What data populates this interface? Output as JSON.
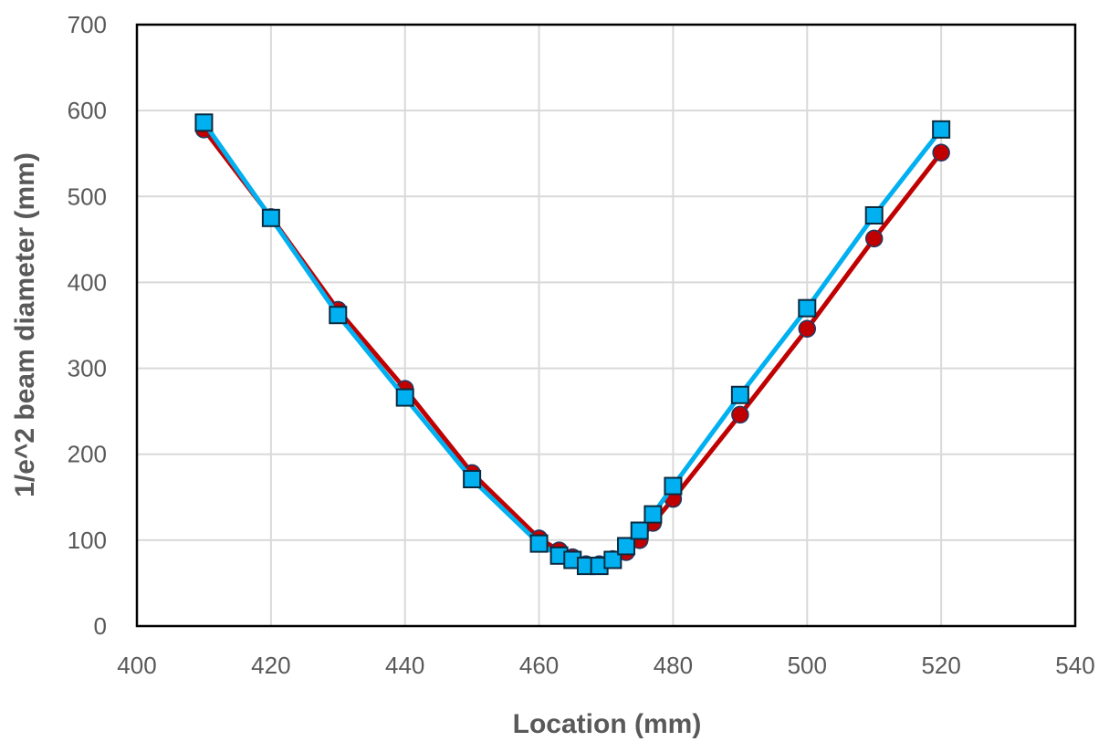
{
  "chart_data": {
    "type": "scatter",
    "xlabel": "Location (mm)",
    "ylabel": "1/e^2 beam diameter (mm)",
    "xlim": [
      400,
      540
    ],
    "ylim": [
      0,
      700
    ],
    "x_ticks": [
      400,
      420,
      440,
      460,
      480,
      500,
      520,
      540
    ],
    "y_ticks": [
      0,
      100,
      200,
      300,
      400,
      500,
      600,
      700
    ],
    "grid": true,
    "legend": "none",
    "series": [
      {
        "color": "#c00000",
        "marker": "circle",
        "line": true,
        "points": [
          [
            410,
            578
          ],
          [
            420,
            476
          ],
          [
            430,
            368
          ],
          [
            440,
            276
          ],
          [
            450,
            178
          ],
          [
            460,
            102
          ],
          [
            463,
            88
          ],
          [
            465,
            80
          ],
          [
            467,
            72
          ],
          [
            469,
            72
          ],
          [
            471,
            78
          ],
          [
            473,
            86
          ],
          [
            475,
            100
          ],
          [
            477,
            120
          ],
          [
            480,
            148
          ],
          [
            490,
            246
          ],
          [
            500,
            346
          ],
          [
            510,
            451
          ],
          [
            520,
            551
          ]
        ]
      },
      {
        "color": "#00b0f0",
        "marker": "square",
        "line": true,
        "points": [
          [
            410,
            586
          ],
          [
            420,
            475
          ],
          [
            430,
            362
          ],
          [
            440,
            266
          ],
          [
            450,
            171
          ],
          [
            460,
            96
          ],
          [
            463,
            82
          ],
          [
            465,
            77
          ],
          [
            467,
            70
          ],
          [
            469,
            70
          ],
          [
            471,
            77
          ],
          [
            473,
            93
          ],
          [
            475,
            111
          ],
          [
            477,
            130
          ],
          [
            480,
            163
          ],
          [
            490,
            269
          ],
          [
            500,
            370
          ],
          [
            510,
            478
          ],
          [
            520,
            578
          ]
        ]
      }
    ]
  }
}
